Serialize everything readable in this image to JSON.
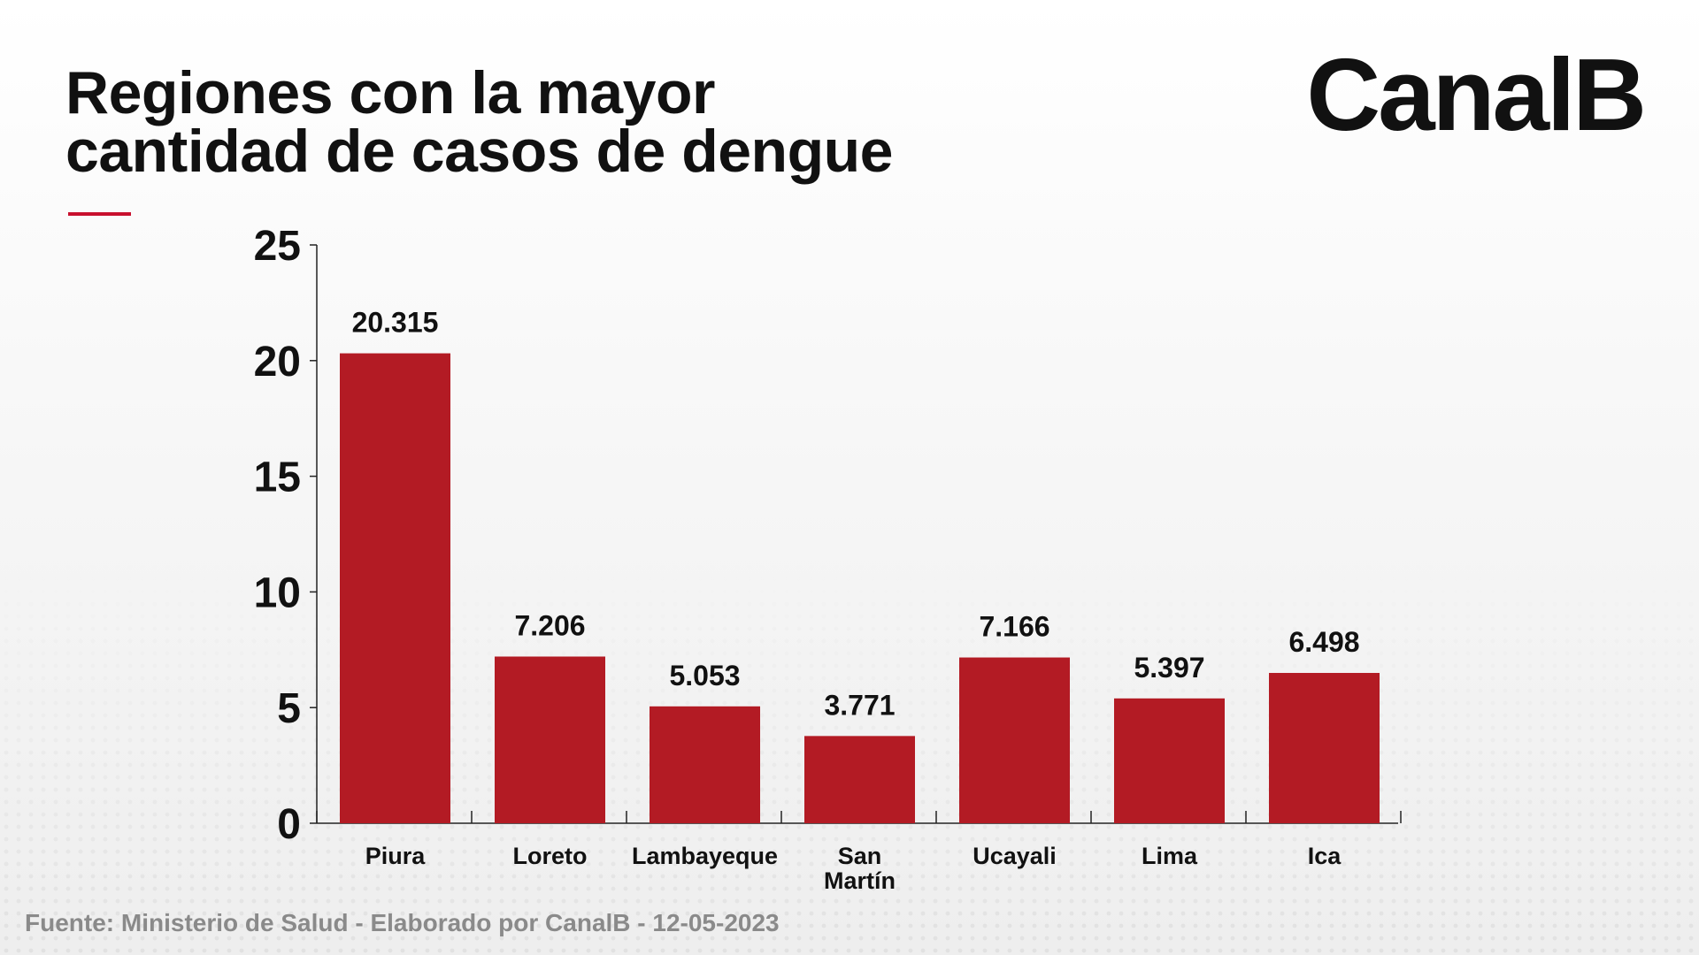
{
  "title_line1": "Regiones con la mayor",
  "title_line2": "cantidad de casos de dengue",
  "brand": "CanalB",
  "source": "Fuente: Ministerio de Salud - Elaborado por CanalB - 12-05-2023",
  "colors": {
    "bar": "#b31b24",
    "accent": "#c8102e",
    "text": "#111111"
  },
  "chart_data": {
    "type": "bar",
    "categories": [
      "Piura",
      "Loreto",
      "Lambayeque",
      "San Martín",
      "Ucayali",
      "Lima",
      "Ica"
    ],
    "category_lines": [
      [
        "Piura"
      ],
      [
        "Loreto"
      ],
      [
        "Lambayeque"
      ],
      [
        "San",
        "Martín"
      ],
      [
        "Ucayali"
      ],
      [
        "Lima"
      ],
      [
        "Ica"
      ]
    ],
    "values": [
      20.315,
      7.206,
      5.053,
      3.771,
      7.166,
      5.397,
      6.498
    ],
    "labels": [
      "20.315",
      "7.206",
      "5.053",
      "3.771",
      "7.166",
      "5.397",
      "6.498"
    ],
    "yticks": [
      0,
      5,
      10,
      15,
      20,
      25
    ],
    "ylim": [
      0,
      25
    ],
    "grid": false,
    "legend": "none"
  }
}
